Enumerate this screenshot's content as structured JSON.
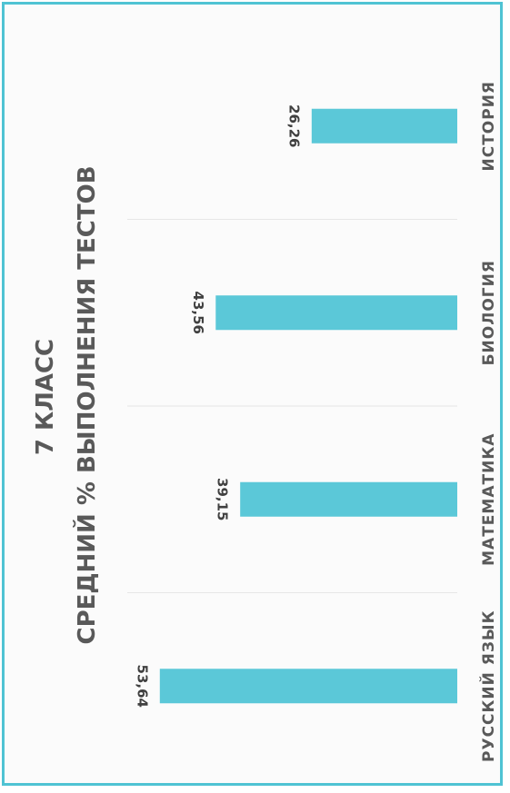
{
  "chart_data": {
    "type": "bar",
    "title": "7 КЛАСС",
    "subtitle": "СРЕДНИЙ % ВЫПОЛНЕНИЯ ТЕСТОВ",
    "categories": [
      "РУССКИЙ ЯЗЫК",
      "МАТЕМАТИКА",
      "БИОЛОГИЯ",
      "ИСТОРИЯ"
    ],
    "values": [
      53.64,
      39.15,
      43.56,
      26.26
    ],
    "value_labels": [
      "53,64",
      "39,15",
      "43,56",
      "26,26"
    ],
    "ylim": [
      0,
      60
    ],
    "grid": false,
    "bar_color": "#5bc8d8",
    "orientation": "rotated-90"
  }
}
